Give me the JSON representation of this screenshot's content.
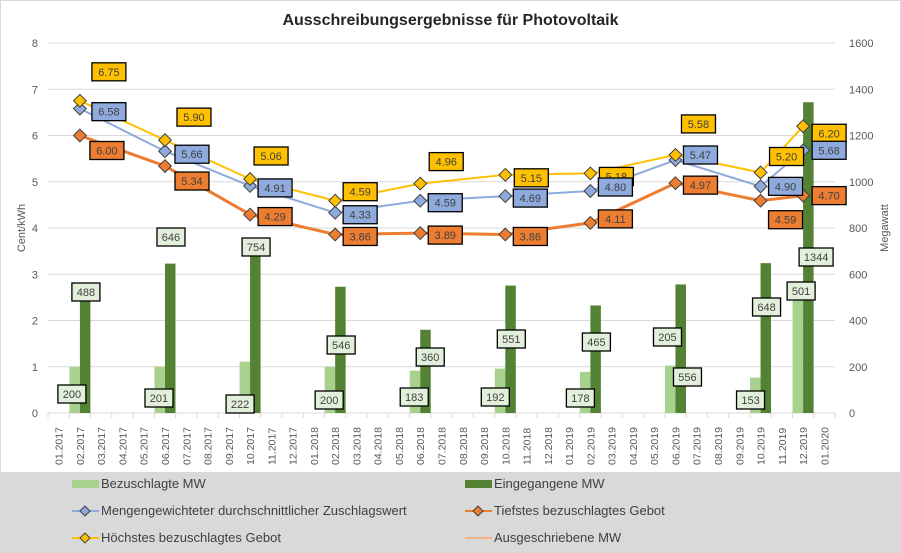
{
  "chart_data": {
    "type": "bar+line",
    "title": "Ausschreibungsergebnisse für Photovoltaik",
    "ylabel_left": "Cent/kWh",
    "ylabel_right": "Megawatt",
    "ylim_left": [
      0,
      8
    ],
    "ylim_right": [
      0,
      1600
    ],
    "yticks_left": [
      0,
      1,
      2,
      3,
      4,
      5,
      6,
      7,
      8
    ],
    "yticks_right": [
      0,
      200,
      400,
      600,
      800,
      1000,
      1200,
      1400,
      1600
    ],
    "grid": true,
    "legend_position": "bottom",
    "categories": [
      "01.2017",
      "02.2017",
      "03.2017",
      "04.2017",
      "05.2017",
      "06.2017",
      "07.2017",
      "08.2017",
      "09.2017",
      "10.2017",
      "11.2017",
      "12.2017",
      "01.2018",
      "02.2018",
      "03.2018",
      "04.2018",
      "05.2018",
      "06.2018",
      "07.2018",
      "08.2018",
      "09.2018",
      "10.2018",
      "11.2018",
      "12.2018",
      "01.2019",
      "02.2019",
      "03.2019",
      "04.2019",
      "05.2019",
      "06.2019",
      "07.2019",
      "08.2019",
      "09.2019",
      "10.2019",
      "11.2019",
      "12.2019",
      "01.2020"
    ],
    "series": [
      {
        "name": "Bezuschlagte MW",
        "type": "bar",
        "axis": "right",
        "color": "#a9d18e",
        "values": [
          null,
          200,
          null,
          null,
          null,
          201,
          null,
          null,
          null,
          222,
          null,
          null,
          null,
          200,
          null,
          null,
          null,
          183,
          null,
          null,
          null,
          192,
          null,
          null,
          null,
          178,
          null,
          null,
          null,
          205,
          null,
          null,
          null,
          153,
          null,
          501,
          null
        ]
      },
      {
        "name": "Eingegangene MW",
        "type": "bar",
        "axis": "right",
        "color": "#548235",
        "values": [
          null,
          488,
          null,
          null,
          null,
          646,
          null,
          null,
          null,
          754,
          null,
          null,
          null,
          546,
          null,
          null,
          null,
          360,
          null,
          null,
          null,
          551,
          null,
          null,
          null,
          465,
          null,
          null,
          null,
          556,
          null,
          null,
          null,
          648,
          null,
          1344,
          null
        ]
      },
      {
        "name": "Mengengewichteter durchschnittlicher Zuschlagswert",
        "type": "line",
        "axis": "left",
        "color": "#8faadc",
        "values": [
          null,
          6.58,
          null,
          null,
          null,
          5.66,
          null,
          null,
          null,
          4.91,
          null,
          null,
          null,
          4.33,
          null,
          null,
          null,
          4.59,
          null,
          null,
          null,
          4.69,
          null,
          null,
          null,
          4.8,
          null,
          null,
          null,
          5.47,
          null,
          null,
          null,
          4.9,
          null,
          5.68,
          null
        ]
      },
      {
        "name": "Tiefstes bezuschlagtes Gebot",
        "type": "line",
        "axis": "left",
        "color": "#ed7d31",
        "values": [
          null,
          6.0,
          null,
          null,
          null,
          5.34,
          null,
          null,
          null,
          4.29,
          null,
          null,
          null,
          3.86,
          null,
          null,
          null,
          3.89,
          null,
          null,
          null,
          3.86,
          null,
          null,
          null,
          4.11,
          null,
          null,
          null,
          4.97,
          null,
          null,
          null,
          4.59,
          null,
          4.7,
          null
        ]
      },
      {
        "name": "Höchstes bezuschlagtes Gebot",
        "type": "line",
        "axis": "left",
        "color": "#ffc000",
        "values": [
          null,
          6.75,
          null,
          null,
          null,
          5.9,
          null,
          null,
          null,
          5.06,
          null,
          null,
          null,
          4.59,
          null,
          null,
          null,
          4.96,
          null,
          null,
          null,
          5.15,
          null,
          null,
          null,
          5.18,
          null,
          null,
          null,
          5.58,
          null,
          null,
          null,
          5.2,
          null,
          6.2,
          null
        ]
      },
      {
        "name": "Ausgeschriebene MW",
        "type": "line",
        "axis": "right",
        "color": "#f4b183",
        "values": []
      }
    ]
  },
  "legend": {
    "items": [
      {
        "label": "Bezuschlagte MW",
        "kind": "bar",
        "color": "#a9d18e"
      },
      {
        "label": "Eingegangene MW",
        "kind": "bar",
        "color": "#548235"
      },
      {
        "label": "Mengengewichteter durchschnittlicher Zuschlagswert",
        "kind": "line-marker",
        "color": "#8faadc"
      },
      {
        "label": "Tiefstes bezuschlagtes Gebot",
        "kind": "line-marker",
        "color": "#ed7d31"
      },
      {
        "label": "Höchstes bezuschlagtes Gebot",
        "kind": "line-marker",
        "color": "#ffc000"
      },
      {
        "label": "Ausgeschriebene MW",
        "kind": "line",
        "color": "#f4b183"
      }
    ]
  }
}
